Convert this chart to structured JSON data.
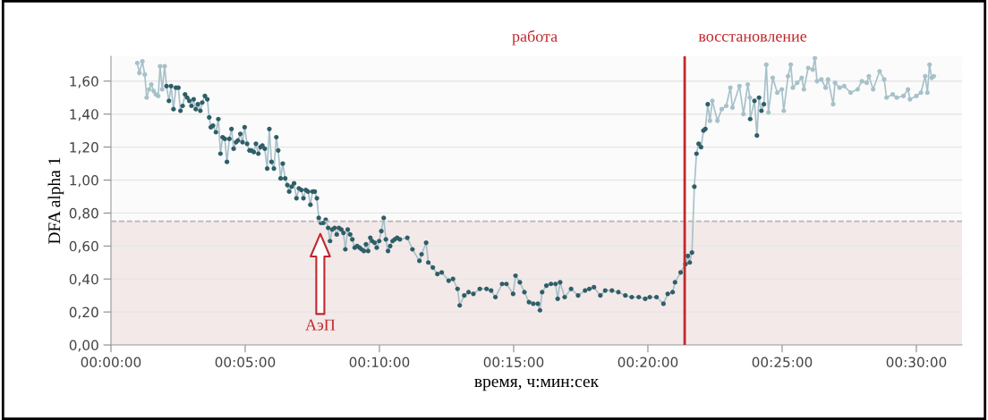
{
  "chart_data": {
    "type": "line",
    "xlabel": "время, ч:мин:сек",
    "ylabel": "DFA alpha 1",
    "xlim": [
      0,
      31.7
    ],
    "ylim": [
      0,
      1.75
    ],
    "xticks": [
      {
        "value": 0,
        "label": "00:00:00"
      },
      {
        "value": 5,
        "label": "00:05:00"
      },
      {
        "value": 10,
        "label": "00:10:00"
      },
      {
        "value": 15,
        "label": "00:15:00"
      },
      {
        "value": 20,
        "label": "00:20:00"
      },
      {
        "value": 25,
        "label": "00:25:00"
      },
      {
        "value": 30,
        "label": "00:30:00"
      }
    ],
    "yticks": [
      {
        "value": 0,
        "label": "0,00"
      },
      {
        "value": 0.2,
        "label": "0,20"
      },
      {
        "value": 0.4,
        "label": "0,40"
      },
      {
        "value": 0.6,
        "label": "0,60"
      },
      {
        "value": 0.8,
        "label": "0,80"
      },
      {
        "value": 1.0,
        "label": "1,00"
      },
      {
        "value": 1.2,
        "label": "1,20"
      },
      {
        "value": 1.4,
        "label": "1,40"
      },
      {
        "value": 1.6,
        "label": "1,60"
      }
    ],
    "grid": "y",
    "marker": "circle",
    "line_style": "solid",
    "legend": false,
    "ref_lines": [
      {
        "axis": "y",
        "value": 0.75,
        "color": "#b5b5b5",
        "line_style": "dashed"
      },
      {
        "axis": "x",
        "value": 21.37,
        "color": "#c0282d",
        "line_style": "solid"
      }
    ],
    "bands": [
      {
        "axis": "y",
        "from": 0,
        "to": 0.75,
        "color": "#f3e9e9"
      }
    ],
    "annotations": [
      "работа",
      "восстановление",
      "АэП"
    ],
    "series": [
      {
        "color": "#a7c1c9",
        "x": [
          0.98,
          1.06,
          1.17,
          1.26,
          1.33,
          1.42,
          1.5,
          1.59,
          1.67,
          1.76,
          1.83,
          1.91,
          2.0,
          2.07,
          2.16,
          2.24,
          2.33,
          2.42,
          2.51,
          2.59,
          2.67,
          2.76,
          2.84,
          2.92,
          3.0,
          3.08,
          3.16,
          3.24,
          3.33,
          3.4,
          3.5,
          3.59,
          3.66,
          3.72,
          3.8,
          3.91,
          4.0,
          4.08,
          4.16,
          4.24,
          4.32,
          4.41,
          4.49,
          4.57,
          4.66,
          4.73,
          4.82,
          4.9,
          4.98,
          5.07,
          5.16,
          5.23,
          5.32,
          5.4,
          5.49,
          5.57,
          5.64,
          5.73,
          5.82,
          5.9,
          5.98,
          6.07,
          6.16,
          6.23,
          6.32,
          6.4,
          6.49,
          6.57,
          6.64,
          6.73,
          6.82,
          6.91,
          7.0,
          7.09,
          7.17,
          7.26,
          7.34,
          7.43,
          7.51,
          7.59,
          7.67,
          7.74,
          7.82,
          7.91,
          8.0,
          8.09,
          8.16,
          8.24,
          8.33,
          8.41,
          8.49,
          8.58,
          8.66,
          8.73,
          8.82,
          8.91,
          8.99,
          9.08,
          9.17,
          9.26,
          9.33,
          9.42,
          9.5,
          9.58,
          9.66,
          9.73,
          9.82,
          9.9,
          9.99,
          10.07,
          10.16,
          10.24,
          10.32,
          10.4,
          10.49,
          10.57,
          10.66,
          10.76,
          11.04,
          11.23,
          11.49,
          11.57,
          11.74,
          11.82,
          11.99,
          12.16,
          12.32,
          12.58,
          12.74,
          12.91,
          12.99,
          13.16,
          13.32,
          13.5,
          13.74,
          13.99,
          14.16,
          14.32,
          14.57,
          14.73,
          14.98,
          15.07,
          15.23,
          15.4,
          15.57,
          15.73,
          15.9,
          15.98,
          16.06,
          16.22,
          16.39,
          16.56,
          16.64,
          16.73,
          16.9,
          17.14,
          17.4,
          17.66,
          17.82,
          17.99,
          18.23,
          18.41,
          18.66,
          18.9,
          19.16,
          19.4,
          19.66,
          19.9,
          20.07,
          20.32,
          20.58,
          20.74,
          20.92,
          21.01,
          21.22,
          21.4,
          21.49,
          21.56,
          21.64,
          21.73,
          21.81,
          21.89,
          21.98,
          22.07,
          22.14,
          22.23,
          22.31,
          22.4,
          22.59,
          22.75,
          22.92,
          23.07,
          23.15,
          23.41,
          23.56,
          23.72,
          23.8,
          23.81,
          23.97,
          24.06,
          24.14,
          24.23,
          24.32,
          24.41,
          24.49,
          24.65,
          24.82,
          24.99,
          25.06,
          25.22,
          25.32,
          25.4,
          25.56,
          25.73,
          25.81,
          25.97,
          26.14,
          26.22,
          26.3,
          26.46,
          26.62,
          26.71,
          26.9,
          26.97,
          27.14,
          27.31,
          27.55,
          27.81,
          27.97,
          28.15,
          28.23,
          28.39,
          28.63,
          28.8,
          28.89,
          29.12,
          29.27,
          29.52,
          29.69,
          29.76,
          30.0,
          30.17,
          30.33,
          30.41,
          30.49,
          30.57,
          30.65
        ],
        "values": [
          1.71,
          1.65,
          1.72,
          1.64,
          1.5,
          1.55,
          1.58,
          1.54,
          1.52,
          1.51,
          1.69,
          1.55,
          1.69,
          1.57,
          1.48,
          1.57,
          1.43,
          1.56,
          1.56,
          1.42,
          1.45,
          1.52,
          1.5,
          1.48,
          1.45,
          1.49,
          1.43,
          1.46,
          1.42,
          1.47,
          1.51,
          1.49,
          1.38,
          1.32,
          1.33,
          1.29,
          1.37,
          1.16,
          1.26,
          1.25,
          1.11,
          1.25,
          1.31,
          1.19,
          1.23,
          1.24,
          1.28,
          1.23,
          1.32,
          1.22,
          1.18,
          1.18,
          1.17,
          1.22,
          1.16,
          1.2,
          1.21,
          1.19,
          1.07,
          1.31,
          1.11,
          1.07,
          1.26,
          1.18,
          1.01,
          1.1,
          1.01,
          0.97,
          0.93,
          0.96,
          0.98,
          0.89,
          0.95,
          0.94,
          0.89,
          0.94,
          0.93,
          0.85,
          0.93,
          0.93,
          0.89,
          0.77,
          0.74,
          0.74,
          0.76,
          0.71,
          0.63,
          0.7,
          0.71,
          0.67,
          0.71,
          0.7,
          0.68,
          0.58,
          0.7,
          0.67,
          0.64,
          0.59,
          0.6,
          0.59,
          0.58,
          0.57,
          0.61,
          0.57,
          0.65,
          0.63,
          0.62,
          0.59,
          0.63,
          0.69,
          0.77,
          0.64,
          0.57,
          0.6,
          0.63,
          0.64,
          0.65,
          0.64,
          0.65,
          0.58,
          0.51,
          0.55,
          0.62,
          0.5,
          0.47,
          0.43,
          0.44,
          0.39,
          0.4,
          0.34,
          0.24,
          0.3,
          0.32,
          0.31,
          0.34,
          0.34,
          0.33,
          0.29,
          0.37,
          0.37,
          0.31,
          0.42,
          0.38,
          0.32,
          0.26,
          0.25,
          0.25,
          0.21,
          0.32,
          0.36,
          0.37,
          0.37,
          0.28,
          0.38,
          0.29,
          0.34,
          0.3,
          0.33,
          0.34,
          0.35,
          0.3,
          0.33,
          0.33,
          0.32,
          0.3,
          0.29,
          0.29,
          0.28,
          0.29,
          0.29,
          0.25,
          0.31,
          0.32,
          0.38,
          0.44,
          0.49,
          0.54,
          0.5,
          0.56,
          0.96,
          1.16,
          1.22,
          1.2,
          1.3,
          1.31,
          1.46,
          1.36,
          1.48,
          1.36,
          1.43,
          1.45,
          1.56,
          1.44,
          1.57,
          1.4,
          1.58,
          1.5,
          1.37,
          1.48,
          1.27,
          1.5,
          1.42,
          1.46,
          1.7,
          1.41,
          1.62,
          1.53,
          1.55,
          1.42,
          1.63,
          1.7,
          1.56,
          1.59,
          1.62,
          1.55,
          1.68,
          1.67,
          1.74,
          1.6,
          1.61,
          1.56,
          1.61,
          1.46,
          1.59,
          1.56,
          1.57,
          1.53,
          1.55,
          1.6,
          1.59,
          1.63,
          1.55,
          1.66,
          1.61,
          1.5,
          1.52,
          1.5,
          1.51,
          1.55,
          1.49,
          1.51,
          1.53,
          1.63,
          1.53,
          1.7,
          1.62,
          1.63
        ],
        "colors": [
          "#a7c1c9",
          "#a7c1c9",
          "#a7c1c9",
          "#a7c1c9",
          "#a7c1c9",
          "#a7c1c9",
          "#a7c1c9",
          "#a7c1c9",
          "#a7c1c9",
          "#a7c1c9",
          "#a7c1c9",
          "#a7c1c9",
          "#a7c1c9",
          "#2e5e68",
          "#2e5e68",
          "#2e5e68",
          "#2e5e68",
          "#2e5e68",
          "#2e5e68",
          "#2e5e68",
          "#2e5e68",
          "#2e5e68",
          "#2e5e68",
          "#2e5e68",
          "#2e5e68",
          "#2e5e68",
          "#2e5e68",
          "#2e5e68",
          "#2e5e68",
          "#2e5e68",
          "#2e5e68",
          "#2e5e68",
          "#2e5e68",
          "#2e5e68",
          "#2e5e68",
          "#2e5e68",
          "#2e5e68",
          "#2e5e68",
          "#2e5e68",
          "#2e5e68",
          "#2e5e68",
          "#2e5e68",
          "#2e5e68",
          "#2e5e68",
          "#2e5e68",
          "#2e5e68",
          "#2e5e68",
          "#2e5e68",
          "#2e5e68",
          "#2e5e68",
          "#2e5e68",
          "#2e5e68",
          "#2e5e68",
          "#2e5e68",
          "#2e5e68",
          "#2e5e68",
          "#2e5e68",
          "#2e5e68",
          "#2e5e68",
          "#2e5e68",
          "#2e5e68",
          "#2e5e68",
          "#2e5e68",
          "#2e5e68",
          "#2e5e68",
          "#2e5e68",
          "#2e5e68",
          "#2e5e68",
          "#2e5e68",
          "#2e5e68",
          "#2e5e68",
          "#2e5e68",
          "#2e5e68",
          "#2e5e68",
          "#2e5e68",
          "#2e5e68",
          "#2e5e68",
          "#2e5e68",
          "#2e5e68",
          "#2e5e68",
          "#2e5e68",
          "#2e5e68",
          "#2e5e68",
          "#2e5e68",
          "#2e5e68",
          "#2e5e68",
          "#2e5e68",
          "#2e5e68",
          "#2e5e68",
          "#2e5e68",
          "#2e5e68",
          "#2e5e68",
          "#2e5e68",
          "#2e5e68",
          "#2e5e68",
          "#2e5e68",
          "#2e5e68",
          "#2e5e68",
          "#2e5e68",
          "#2e5e68",
          "#2e5e68",
          "#2e5e68",
          "#2e5e68",
          "#2e5e68",
          "#2e5e68",
          "#2e5e68",
          "#2e5e68",
          "#2e5e68",
          "#2e5e68",
          "#2e5e68",
          "#2e5e68",
          "#2e5e68",
          "#2e5e68",
          "#2e5e68",
          "#2e5e68",
          "#2e5e68",
          "#2e5e68",
          "#2e5e68",
          "#2e5e68",
          "#2e5e68",
          "#2e5e68",
          "#2e5e68",
          "#2e5e68",
          "#2e5e68",
          "#2e5e68",
          "#2e5e68",
          "#2e5e68",
          "#2e5e68",
          "#2e5e68",
          "#2e5e68",
          "#2e5e68",
          "#2e5e68",
          "#2e5e68",
          "#2e5e68",
          "#2e5e68",
          "#2e5e68",
          "#2e5e68",
          "#2e5e68",
          "#2e5e68",
          "#2e5e68",
          "#2e5e68",
          "#2e5e68",
          "#2e5e68",
          "#2e5e68",
          "#2e5e68",
          "#2e5e68",
          "#2e5e68",
          "#2e5e68",
          "#2e5e68",
          "#2e5e68",
          "#2e5e68",
          "#2e5e68",
          "#2e5e68",
          "#2e5e68",
          "#2e5e68",
          "#2e5e68",
          "#2e5e68",
          "#2e5e68",
          "#2e5e68",
          "#2e5e68",
          "#2e5e68",
          "#2e5e68",
          "#2e5e68",
          "#2e5e68",
          "#2e5e68",
          "#2e5e68",
          "#2e5e68",
          "#2e5e68",
          "#2e5e68",
          "#2e5e68",
          "#2e5e68",
          "#2e5e68",
          "#2e5e68",
          "#2e5e68",
          "#2e5e68",
          "#2e5e68",
          "#2e5e68",
          "#2e5e68",
          "#2e5e68",
          "#2e5e68",
          "#2e5e68",
          "#2e5e68",
          "#2e5e68",
          "#2e5e68",
          "#2e5e68",
          "#2e5e68",
          "#a7c1c9",
          "#a7c1c9",
          "#a7c1c9",
          "#a7c1c9",
          "#a7c1c9",
          "#a7c1c9",
          "#a7c1c9",
          "#a7c1c9",
          "#a7c1c9",
          "#a7c1c9",
          "#a7c1c9",
          "#2e5e68",
          "#2e5e68",
          "#2e5e68",
          "#2e5e68",
          "#2e5e68",
          "#2e5e68",
          "#a7c1c9",
          "#a7c1c9",
          "#a7c1c9",
          "#a7c1c9",
          "#a7c1c9",
          "#a7c1c9",
          "#a7c1c9",
          "#a7c1c9",
          "#a7c1c9",
          "#a7c1c9",
          "#a7c1c9",
          "#a7c1c9",
          "#a7c1c9",
          "#a7c1c9",
          "#a7c1c9",
          "#a7c1c9",
          "#a7c1c9",
          "#a7c1c9",
          "#a7c1c9",
          "#a7c1c9",
          "#a7c1c9",
          "#a7c1c9",
          "#a7c1c9",
          "#a7c1c9",
          "#a7c1c9",
          "#a7c1c9",
          "#a7c1c9",
          "#a7c1c9",
          "#a7c1c9",
          "#a7c1c9",
          "#a7c1c9",
          "#a7c1c9",
          "#a7c1c9",
          "#a7c1c9",
          "#a7c1c9",
          "#a7c1c9",
          "#a7c1c9",
          "#a7c1c9",
          "#a7c1c9",
          "#a7c1c9",
          "#a7c1c9",
          "#a7c1c9",
          "#a7c1c9",
          "#a7c1c9"
        ]
      }
    ]
  }
}
